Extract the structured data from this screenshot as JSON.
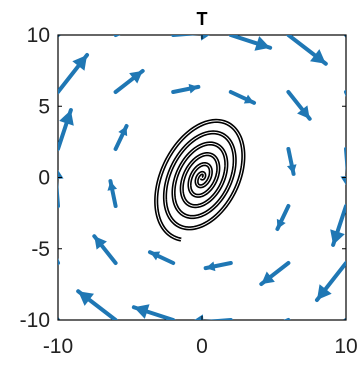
{
  "chart_data": {
    "type": "quiver",
    "title": "T",
    "xlabel": "",
    "ylabel": "",
    "xlim": [
      -10,
      10
    ],
    "ylim": [
      -10,
      10
    ],
    "xticks": [
      -10,
      0,
      10
    ],
    "yticks": [
      -10,
      -5,
      0,
      5,
      10
    ],
    "xtick_labels": [
      "-10",
      "0",
      "10"
    ],
    "ytick_labels": [
      "-10",
      "-5",
      "0",
      "5",
      "10"
    ],
    "grid": false,
    "legend": "none",
    "colors": {
      "arrows": "#1f77b4",
      "trajectory_outer": "#000000",
      "trajectory_inner": "#ffffff",
      "axes": "#000000",
      "background": "#ffffff"
    },
    "quiver_rotation_factor": 1,
    "quiver_inward_factor": 0.12,
    "quiver_scale": 0.28,
    "quiver_grid": [
      -10,
      -6,
      -2,
      2,
      6,
      10
    ],
    "trajectory": {
      "description_center": [
        0,
        0
      ],
      "turns": 6,
      "outer_radius": 4.6
    }
  }
}
